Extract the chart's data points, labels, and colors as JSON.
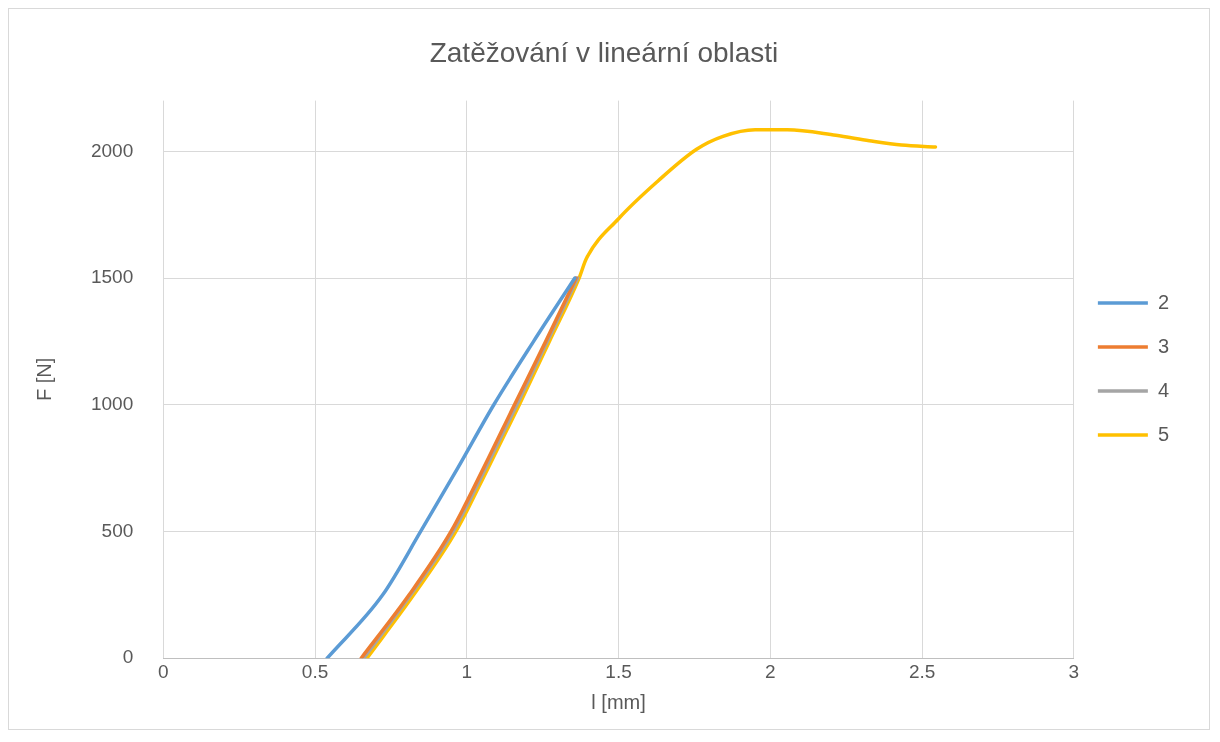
{
  "chart_data": {
    "type": "line",
    "title": "Zatěžování v lineární oblasti",
    "xlabel": "l [mm]",
    "ylabel": "F [N]",
    "xlim": [
      0,
      3
    ],
    "xticks": [
      0,
      0.5,
      1,
      1.5,
      2,
      2.5,
      3
    ],
    "ylim": [
      0,
      2200
    ],
    "yticks": [
      0,
      500,
      1000,
      1500,
      2000
    ],
    "grid": true,
    "legend": "right",
    "marker": "none",
    "line_style": "solid",
    "series": [
      {
        "name": "2",
        "color": "#5b9bd5",
        "x": [
          0.54,
          0.723,
          0.848,
          0.97,
          1.089,
          1.22,
          1.356
        ],
        "values": [
          0,
          250,
          500,
          750,
          1000,
          1250,
          1500
        ]
      },
      {
        "name": "3",
        "color": "#ed7d31",
        "x": [
          0.652,
          0.81,
          0.948,
          1.055,
          1.157,
          1.26,
          1.36
        ],
        "values": [
          0,
          250,
          500,
          750,
          1000,
          1250,
          1500
        ]
      },
      {
        "name": "4",
        "color": "#a5a5a5",
        "x": [
          0.66,
          0.815,
          0.955,
          1.062,
          1.165,
          1.265,
          1.365
        ],
        "values": [
          0,
          250,
          500,
          750,
          1000,
          1250,
          1500
        ]
      },
      {
        "name": "5",
        "color": "#ffc000",
        "x": [
          0.671,
          0.825,
          0.964,
          1.07,
          1.173,
          1.272,
          1.37,
          1.394,
          1.5,
          1.629,
          1.757,
          1.844,
          1.95,
          2.056,
          2.216,
          2.326,
          2.432,
          2.544
        ],
        "values": [
          0,
          250,
          500,
          750,
          1000,
          1250,
          1500,
          1577,
          1734,
          1882,
          2008,
          2059,
          2085,
          2085,
          2063,
          2042,
          2025,
          2017
        ]
      }
    ]
  }
}
